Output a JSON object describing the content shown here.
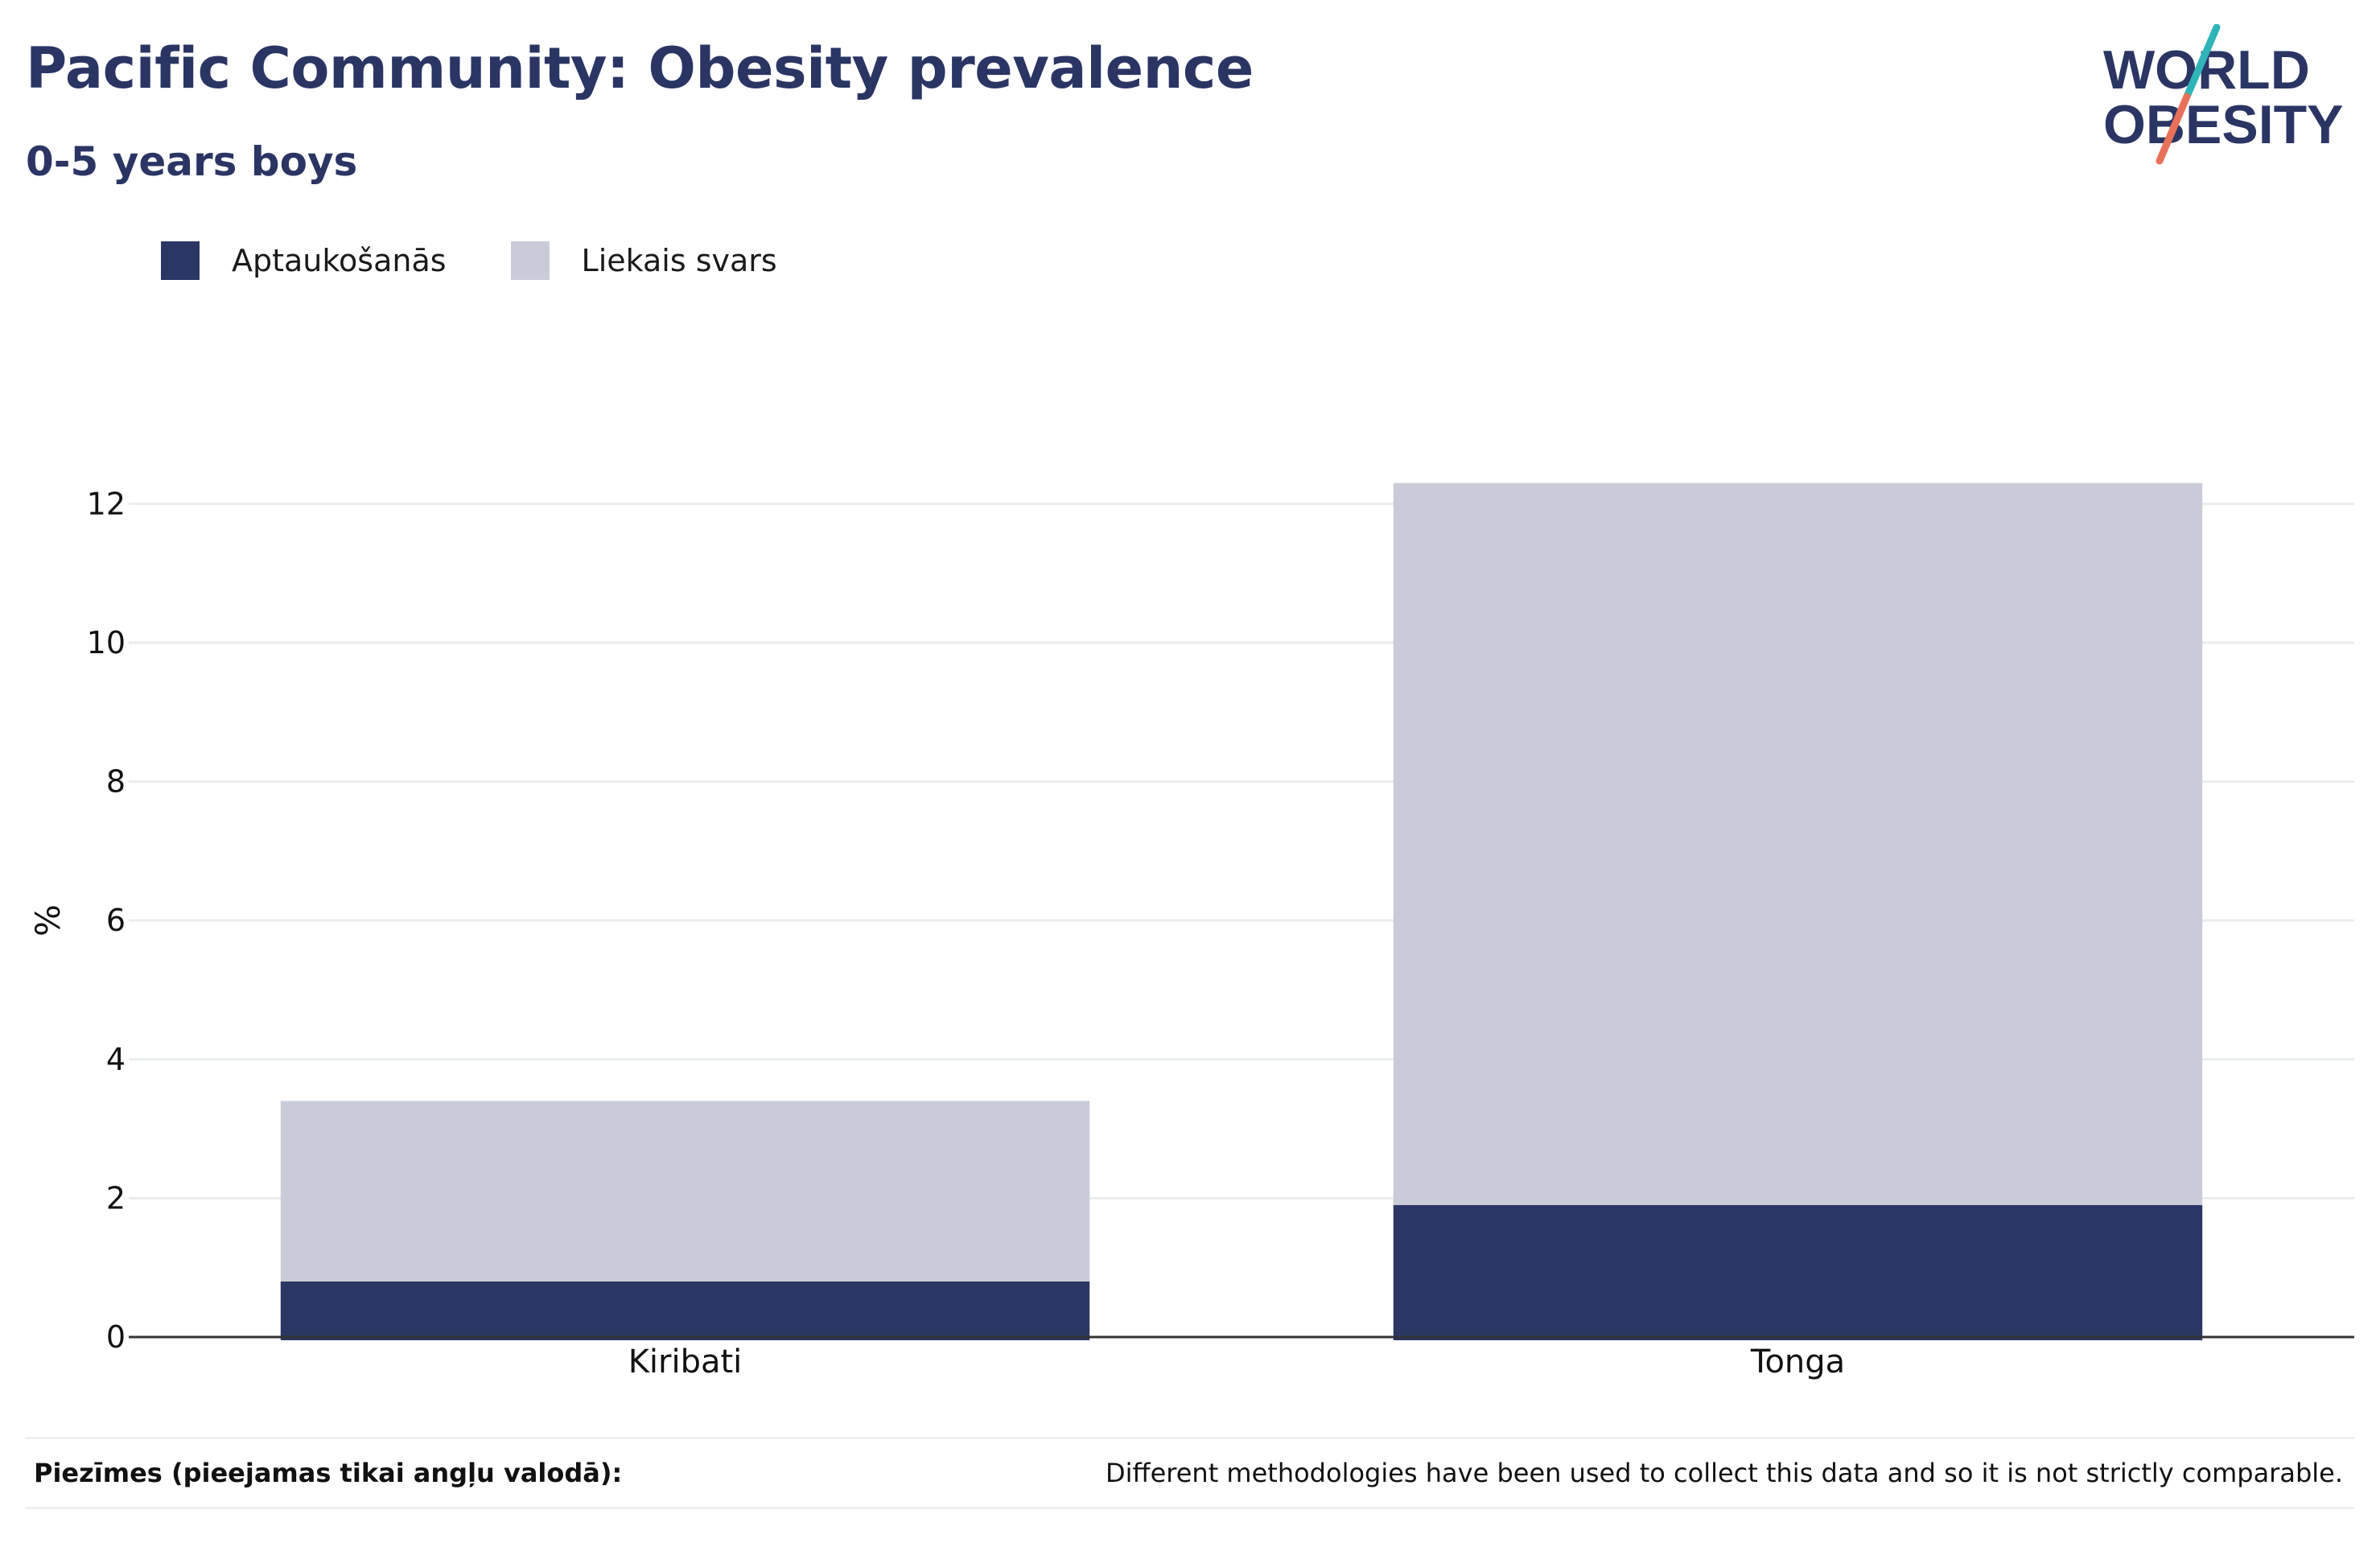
{
  "header": {
    "title": "Pacific Community: Obesity prevalence",
    "subtitle": "0-5 years boys"
  },
  "logo": {
    "line1": "WORLD",
    "line2": "OBESITY",
    "slash_colors": [
      "#2fb4b9",
      "#e8715a"
    ]
  },
  "legend": [
    {
      "label": "Aptaukošanās",
      "color": "#2a3664"
    },
    {
      "label": "Liekais svars",
      "color": "#c9ccd8"
    }
  ],
  "chart_data": {
    "type": "bar",
    "stacked": true,
    "categories": [
      "Kiribati",
      "Tonga"
    ],
    "series": [
      {
        "name": "Aptaukošanās",
        "values": [
          0.8,
          1.9
        ],
        "color": "#2a3664"
      },
      {
        "name": "Liekais svars",
        "values": [
          2.6,
          10.4
        ],
        "color": "#c9ccd8"
      }
    ],
    "title": "Pacific Community: Obesity prevalence",
    "subtitle": "0-5 years boys",
    "xlabel": "",
    "ylabel": "%",
    "ylim": [
      0,
      13
    ],
    "yticks": [
      0,
      2,
      4,
      6,
      8,
      10,
      12
    ],
    "grid": true,
    "legend_position": "top-left"
  },
  "notes": {
    "label": "Piezīmes (pieejamas tikai angļu valodā):",
    "text": "Different methodologies have been used to collect this data and so it is not strictly comparable."
  }
}
